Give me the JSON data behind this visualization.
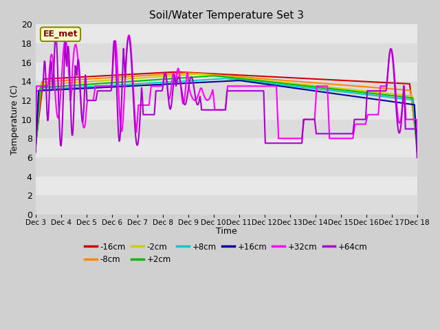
{
  "title": "Soil/Water Temperature Set 3",
  "xlabel": "Time",
  "ylabel": "Temperature (C)",
  "ylim": [
    0,
    20
  ],
  "yticks": [
    0,
    2,
    4,
    6,
    8,
    10,
    12,
    14,
    16,
    18,
    20
  ],
  "x_labels": [
    "Dec 3",
    "Dec 4",
    "Dec 5",
    "Dec 6",
    "Dec 7",
    "Dec 8",
    "Dec 9",
    "Dec 10",
    "Dec 11",
    "Dec 12",
    "Dec 13",
    "Dec 14",
    "Dec 15",
    "Dec 16",
    "Dec 17",
    "Dec 18"
  ],
  "annotation_text": "EE_met",
  "series": [
    {
      "label": "-16cm",
      "color": "#cc0000",
      "linewidth": 1.5
    },
    {
      "label": "-8cm",
      "color": "#ff8800",
      "linewidth": 1.5
    },
    {
      "label": "-2cm",
      "color": "#cccc00",
      "linewidth": 1.5
    },
    {
      "label": "+2cm",
      "color": "#00bb00",
      "linewidth": 1.5
    },
    {
      "label": "+8cm",
      "color": "#00cccc",
      "linewidth": 1.5
    },
    {
      "label": "+16cm",
      "color": "#000099",
      "linewidth": 1.5
    },
    {
      "label": "+32cm",
      "color": "#ff00ff",
      "linewidth": 1.5
    },
    {
      "label": "+64cm",
      "color": "#aa00cc",
      "linewidth": 1.5
    }
  ],
  "band_colors": [
    "#dcdcdc",
    "#e8e8e8"
  ],
  "fig_facecolor": "#d0d0d0"
}
